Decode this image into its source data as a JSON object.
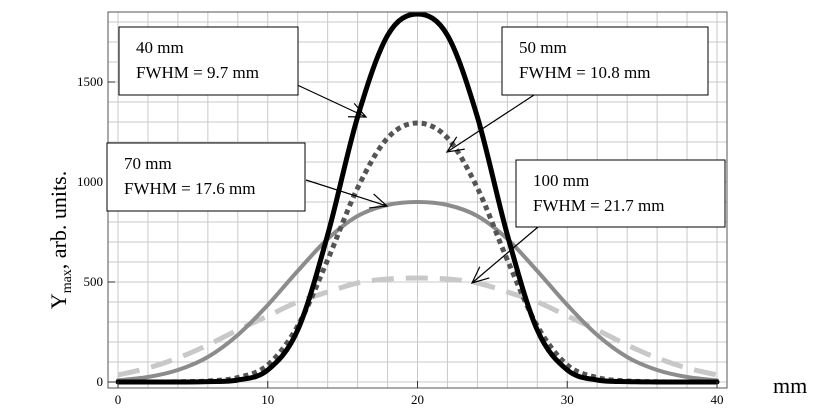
{
  "chart_data": {
    "type": "line",
    "title": "",
    "xlabel": "mm",
    "ylabel": {
      "base": "Y",
      "sub": "max",
      "rest": ", arb. units."
    },
    "xlim": [
      0,
      40
    ],
    "ylim": [
      0,
      1850
    ],
    "grid": true,
    "x_ticks": [
      0,
      10,
      20,
      30,
      40
    ],
    "y_ticks": [
      0,
      500,
      1000,
      1500
    ],
    "x": [
      0,
      2,
      4,
      6,
      8,
      10,
      12,
      14,
      16,
      18,
      20,
      22,
      24,
      26,
      28,
      30,
      32,
      34,
      36,
      38,
      40
    ],
    "series": [
      {
        "name": "40 mm",
        "fwhm_label": "FWHM = 9.7 mm",
        "color": "#000000",
        "style": "solid",
        "values": [
          0,
          0,
          0,
          2,
          10,
          60,
          260,
          735,
          1325,
          1733,
          1840,
          1733,
          1325,
          735,
          260,
          60,
          10,
          2,
          0,
          0,
          0
        ]
      },
      {
        "name": "50 mm",
        "fwhm_label": "FWHM = 10.8 mm",
        "color": "#555555",
        "style": "dotted",
        "values": [
          0,
          0,
          1,
          5,
          22,
          85,
          280,
          610,
          970,
          1220,
          1295,
          1220,
          970,
          610,
          280,
          85,
          22,
          5,
          1,
          0,
          0
        ]
      },
      {
        "name": "70 mm",
        "fwhm_label": "FWHM = 17.6 mm",
        "color": "#8c8c8c",
        "style": "solid",
        "values": [
          8,
          25,
          60,
          125,
          235,
          385,
          555,
          715,
          830,
          885,
          900,
          885,
          830,
          715,
          555,
          385,
          235,
          125,
          60,
          25,
          8
        ]
      },
      {
        "name": "100 mm",
        "fwhm_label": "FWHM = 21.7 mm",
        "color": "#c8c8c8",
        "style": "dashed",
        "values": [
          35,
          70,
          120,
          185,
          260,
          330,
          400,
          450,
          495,
          515,
          520,
          515,
          495,
          450,
          400,
          330,
          260,
          185,
          120,
          70,
          35
        ]
      }
    ]
  }
}
